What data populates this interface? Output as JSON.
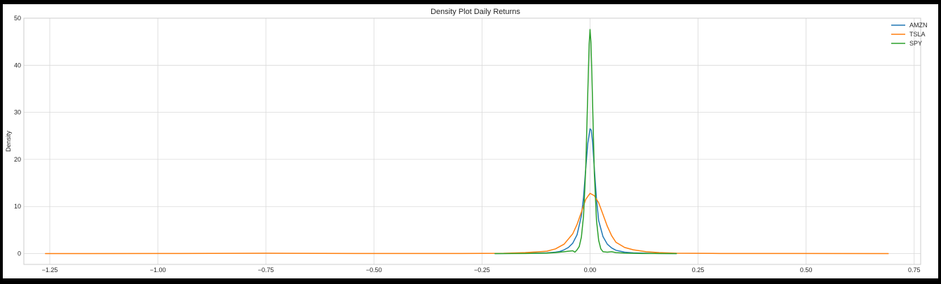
{
  "chart_data": {
    "type": "line",
    "title": "Density Plot Daily Returns",
    "xlabel": "",
    "ylabel": "Density",
    "xlim": [
      -1.31,
      0.765
    ],
    "ylim": [
      -2.3,
      50
    ],
    "xticks": [
      -1.25,
      -1.0,
      -0.75,
      -0.5,
      -0.25,
      0.0,
      0.25,
      0.5,
      0.75
    ],
    "xtick_labels": [
      "−1.25",
      "−1.00",
      "−0.75",
      "−0.50",
      "−0.25",
      "0.00",
      "0.25",
      "0.50",
      "0.75"
    ],
    "yticks": [
      0,
      10,
      20,
      30,
      40,
      50
    ],
    "ytick_labels": [
      "0",
      "10",
      "20",
      "30",
      "40",
      "50"
    ],
    "grid": true,
    "legend_position": "top-right",
    "series": [
      {
        "name": "AMZN",
        "color": "#1f77b4",
        "x": [
          -0.22,
          -0.16,
          -0.12,
          -0.1,
          -0.08,
          -0.07,
          -0.06,
          -0.05,
          -0.04,
          -0.03,
          -0.02,
          -0.015,
          -0.01,
          -0.005,
          0.0,
          0.003,
          0.006,
          0.01,
          0.015,
          0.02,
          0.03,
          0.04,
          0.05,
          0.06,
          0.08,
          0.1,
          0.13,
          0.16,
          0.2
        ],
        "y": [
          0.0,
          0.05,
          0.1,
          0.15,
          0.3,
          0.45,
          0.8,
          1.3,
          2.2,
          4.0,
          8.0,
          12.0,
          18.0,
          23.5,
          26.5,
          26.2,
          23.5,
          18.0,
          11.5,
          7.0,
          3.6,
          2.0,
          1.2,
          0.7,
          0.3,
          0.15,
          0.07,
          0.03,
          0.0
        ]
      },
      {
        "name": "TSLA",
        "color": "#ff7f0e",
        "x": [
          -1.26,
          -1.0,
          -0.8,
          -0.75,
          -0.7,
          -0.5,
          -0.3,
          -0.2,
          -0.15,
          -0.1,
          -0.08,
          -0.06,
          -0.04,
          -0.03,
          -0.02,
          -0.01,
          0.0,
          0.01,
          0.02,
          0.03,
          0.04,
          0.05,
          0.06,
          0.08,
          0.1,
          0.13,
          0.16,
          0.2,
          0.3,
          0.5,
          0.69
        ],
        "y": [
          0.0,
          0.02,
          0.05,
          0.08,
          0.05,
          0.02,
          0.02,
          0.05,
          0.2,
          0.5,
          1.0,
          2.0,
          4.2,
          6.2,
          8.8,
          11.5,
          12.8,
          12.3,
          10.8,
          8.3,
          5.8,
          3.8,
          2.4,
          1.3,
          0.8,
          0.4,
          0.2,
          0.08,
          0.03,
          0.02,
          0.0
        ]
      },
      {
        "name": "SPY",
        "color": "#2ca02c",
        "x": [
          -0.22,
          -0.15,
          -0.1,
          -0.08,
          -0.06,
          -0.05,
          -0.04,
          -0.035,
          -0.03,
          -0.025,
          -0.02,
          -0.015,
          -0.01,
          -0.007,
          -0.004,
          -0.002,
          0.0,
          0.002,
          0.004,
          0.007,
          0.01,
          0.015,
          0.02,
          0.025,
          0.03,
          0.04,
          0.05,
          0.06,
          0.08,
          0.1,
          0.12,
          0.15,
          0.2
        ],
        "y": [
          0.0,
          0.02,
          0.1,
          0.2,
          0.4,
          0.5,
          0.6,
          0.3,
          0.8,
          1.5,
          3.5,
          8.0,
          18.0,
          28.0,
          38.0,
          44.5,
          47.6,
          45.0,
          39.0,
          28.0,
          17.0,
          7.0,
          2.8,
          1.0,
          0.4,
          0.3,
          0.4,
          0.2,
          0.1,
          0.05,
          0.03,
          0.02,
          0.0
        ]
      }
    ]
  }
}
